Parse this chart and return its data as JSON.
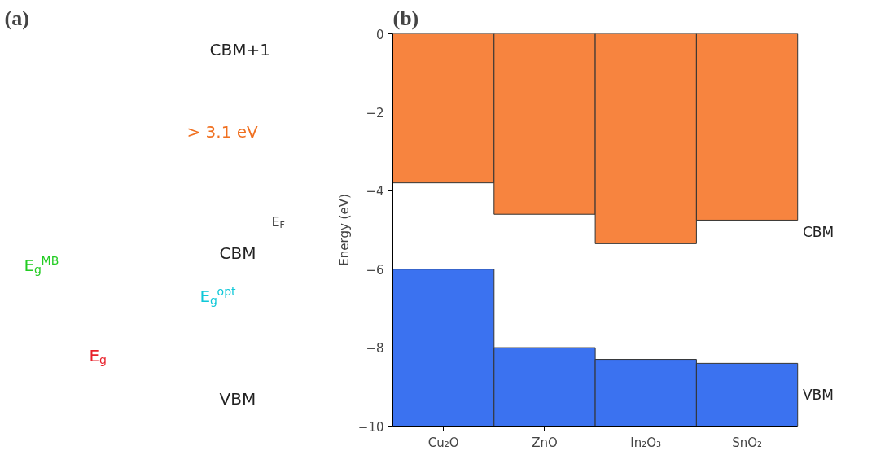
{
  "chart_data": [
    {
      "type": "other",
      "title": "(a)",
      "annotations": [
        "CBM+1",
        "> 3.1 eV",
        "E$_{F}$",
        "CBM",
        "E$_{g}$$^{MB}$",
        "E$_{g}$$^{opt}$",
        "E$_{g}$",
        "VBM"
      ]
    },
    {
      "type": "bar",
      "title": "(b)",
      "ylabel": "Energy (eV)",
      "categories": [
        "Cu₂O",
        "ZnO",
        "In₂O₃",
        "SnO₂"
      ],
      "series": [
        {
          "name": "CBM",
          "color": "#f7843f",
          "base": [
            0,
            0,
            0,
            0
          ],
          "values": [
            -3.8,
            -4.6,
            -5.35,
            -4.75
          ]
        },
        {
          "name": "VBM",
          "color": "#3b72f0",
          "base": [
            -10,
            -10,
            -10,
            -10
          ],
          "values": [
            4.0,
            2.0,
            1.7,
            1.6
          ]
        }
      ],
      "ylim": [
        -10,
        0
      ],
      "yticks": [
        0,
        -2,
        -4,
        -6,
        -8,
        -10
      ],
      "grid": false
    }
  ]
}
